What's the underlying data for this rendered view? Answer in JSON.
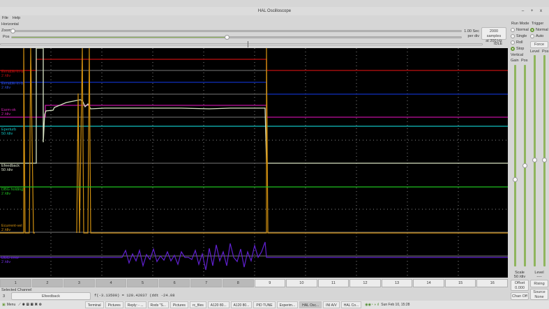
{
  "window": {
    "title": "HAL Oscilloscope",
    "controls": [
      "–",
      "+",
      "x"
    ]
  },
  "menu": [
    "File",
    "Help"
  ],
  "horizontal": {
    "label": "Horizontal",
    "zoom_label": "Zoom",
    "pos_label": "Pos",
    "per_div_1": "1.00 Sec",
    "per_div_2": "per div",
    "samples_1": "2000 samples",
    "samples_2": "at 200 Hz",
    "status": "IDLE",
    "zoom_value": 0,
    "pos_value": 0.5
  },
  "run_mode": {
    "label": "Run Mode",
    "options": [
      "Normal",
      "Single",
      "Roll",
      "Stop"
    ],
    "selected": "Stop"
  },
  "trigger": {
    "label": "Trigger",
    "options": [
      "Normal",
      "Auto"
    ],
    "selected": "Normal",
    "force": "Force",
    "level": "Level",
    "pos": "Pos",
    "level_label": "Level",
    "level_value": "----",
    "edge": "Rising",
    "source": "Source",
    "source_value": "None"
  },
  "vertical": {
    "label": "Vertical",
    "gain": "Gain",
    "pos": "Pos",
    "scale_label": "Scale",
    "scale_value": "50 /div",
    "offset_label": "Offset",
    "offset_value": "0.000",
    "chan_off": "Chan Off"
  },
  "channels": [
    {
      "name": "Eenable-in-a",
      "scale": "2 /div",
      "color": "#c01010"
    },
    {
      "name": "Eenable-in-b",
      "scale": "2 /div",
      "color": "#1030c0"
    },
    {
      "name": "Earm-ok",
      "scale": "2 /div",
      "color": "#c010a0"
    },
    {
      "name": "Eperturb",
      "scale": "50 /div",
      "color": "#10c0c0"
    },
    {
      "name": "Efeedback",
      "scale": "50 /div",
      "color": "#e0e8d0"
    },
    {
      "name": "DBG holding",
      "scale": "2 /div",
      "color": "#20c020"
    },
    {
      "name": "Ecurrent-vel",
      "scale": "2 /div",
      "color": "#d09010"
    },
    {
      "name": "DBG error",
      "scale": "2 /div",
      "color": "#6020d0"
    }
  ],
  "channel_tabs": [
    "1",
    "2",
    "3",
    "4",
    "5",
    "6",
    "7",
    "8",
    "9",
    "10",
    "11",
    "12",
    "13",
    "14",
    "15",
    "16"
  ],
  "selected_channel": {
    "label": "Selected Channel",
    "number": "3",
    "name": "Efeedback",
    "readout": "f(-3.13500) =  120.42037 (ddt -24.08"
  },
  "taskbar": {
    "menu": "Menu",
    "items": [
      "Terminal",
      "Pictures",
      "Reply: - ...",
      "Rods \"S...",
      "Pictures",
      "rc_files",
      "A120 80...",
      "A120 80...",
      "PID TUNE",
      "Experim...",
      "HAL Osc...",
      "INI A/V",
      "HAL Co..."
    ],
    "active": "HAL Osc...",
    "clock": "Sun Feb 10, 15:28"
  }
}
